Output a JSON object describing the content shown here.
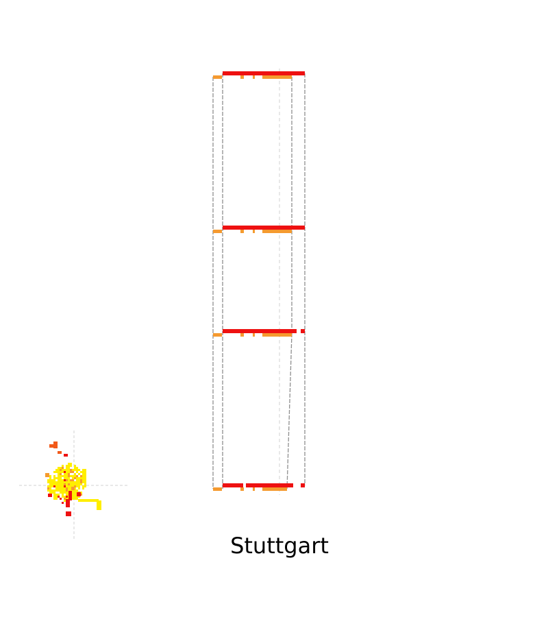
{
  "caption": "Stuttgart",
  "colors": {
    "red": "#ee1111",
    "orange": "#f59a2f",
    "orange_red": "#f25a1a",
    "yellow": "#ffee00",
    "gray_line": "#8f8f8f",
    "guide_line": "#d2d2d2"
  },
  "diagram": {
    "levels": 4,
    "glyph": "pixel-cluster"
  }
}
